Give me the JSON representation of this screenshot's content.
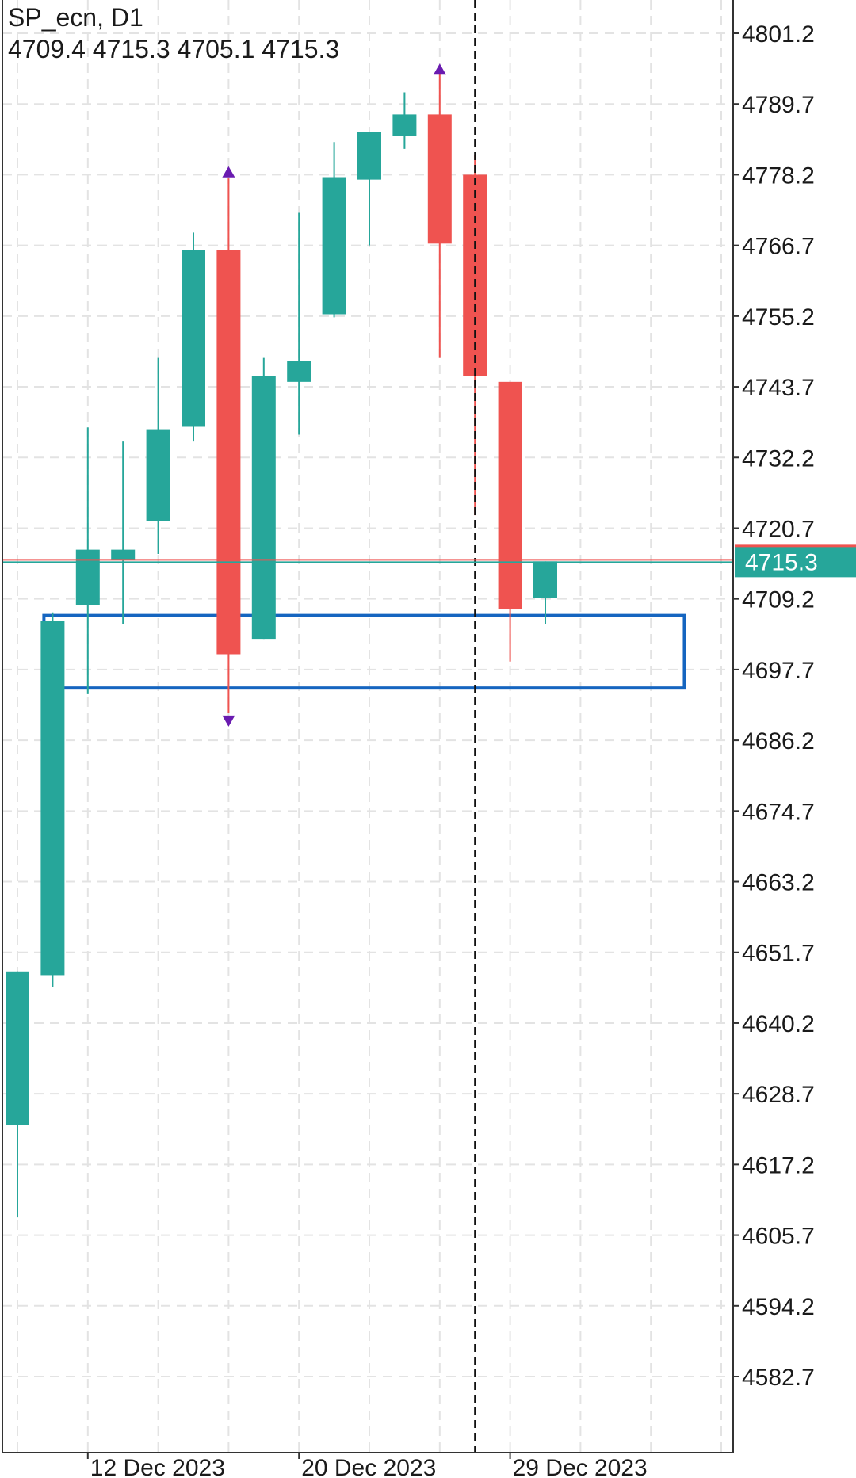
{
  "header": {
    "symbol_timeframe": "SP_ecn, D1",
    "ohlc": "4709.4 4715.3 4705.1 4715.3"
  },
  "colors": {
    "bull": "#26a69a",
    "bear": "#ef5350",
    "grid": "#e3e3e3",
    "axis": "#333333",
    "zone": "#1565c0",
    "signal_arrow": "#6a1bb0",
    "price_tag_bg": "#26a69a",
    "price_tag_text": "#ffffff"
  },
  "chart_data": {
    "type": "candlestick",
    "symbol": "SP_ecn",
    "timeframe": "D1",
    "ylim": [
      4572,
      4810
    ],
    "y_ticks": [
      4801.2,
      4789.7,
      4778.2,
      4766.7,
      4755.2,
      4743.7,
      4732.2,
      4720.7,
      4709.2,
      4697.7,
      4686.2,
      4674.7,
      4663.2,
      4651.7,
      4640.2,
      4628.7,
      4617.2,
      4605.7,
      4594.2,
      4582.7
    ],
    "y_tick_labels": [
      "4801.2",
      "4789.7",
      "4778.2",
      "4766.7",
      "4755.2",
      "4743.7",
      "4732.2",
      "4720.7",
      "4709.2",
      "4697.7",
      "4686.2",
      "4674.7",
      "4663.2",
      "4651.7",
      "4640.2",
      "4628.7",
      "4617.2",
      "4605.7",
      "4594.2",
      "4582.7"
    ],
    "x_tick_labels": [
      {
        "slot": 2,
        "label": "12 Dec 2023"
      },
      {
        "slot": 8,
        "label": "20 Dec 2023"
      },
      {
        "slot": 14,
        "label": "29 Dec 2023"
      }
    ],
    "grid": true,
    "current_price": 4715.3,
    "current_price_label": "4715.3",
    "vertical_marker_slot": 13,
    "candles": [
      {
        "slot": 0,
        "open": 4623.6,
        "high": 4648.6,
        "low": 4608.6,
        "close": 4648.6
      },
      {
        "slot": 1,
        "open": 4648.0,
        "high": 4707.0,
        "low": 4646.0,
        "close": 4705.6
      },
      {
        "slot": 2,
        "open": 4708.2,
        "high": 4737.1,
        "low": 4693.7,
        "close": 4717.2
      },
      {
        "slot": 3,
        "open": 4715.5,
        "high": 4734.8,
        "low": 4705.1,
        "close": 4717.2
      },
      {
        "slot": 4,
        "open": 4721.9,
        "high": 4748.4,
        "low": 4716.5,
        "close": 4736.8
      },
      {
        "slot": 5,
        "open": 4737.2,
        "high": 4768.8,
        "low": 4734.8,
        "close": 4766.0
      },
      {
        "slot": 6,
        "open": 4766.0,
        "high": 4777.6,
        "low": 4690.6,
        "close": 4700.2
      },
      {
        "slot": 7,
        "open": 4702.7,
        "high": 4748.4,
        "low": 4702.7,
        "close": 4745.4
      },
      {
        "slot": 8,
        "open": 4744.5,
        "high": 4772.0,
        "low": 4735.9,
        "close": 4747.9
      },
      {
        "slot": 9,
        "open": 4755.5,
        "high": 4783.5,
        "low": 4755.0,
        "close": 4777.8
      },
      {
        "slot": 10,
        "open": 4777.4,
        "high": 4785.2,
        "low": 4766.7,
        "close": 4785.2
      },
      {
        "slot": 11,
        "open": 4784.5,
        "high": 4791.6,
        "low": 4782.4,
        "close": 4788.0
      },
      {
        "slot": 12,
        "open": 4788.0,
        "high": 4794.5,
        "low": 4748.4,
        "close": 4767.0
      },
      {
        "slot": 13,
        "open": 4778.2,
        "high": 4781.5,
        "low": 4722.8,
        "close": 4745.4
      },
      {
        "slot": 14,
        "open": 4744.5,
        "high": 4744.5,
        "low": 4699.0,
        "close": 4707.6
      },
      {
        "slot": 15,
        "open": 4709.4,
        "high": 4715.3,
        "low": 4705.1,
        "close": 4715.3
      }
    ],
    "signal_arrows": [
      {
        "slot": 6,
        "direction": "up",
        "price": 4778.8
      },
      {
        "slot": 6,
        "direction": "down",
        "price": 4689.2
      },
      {
        "slot": 12,
        "direction": "up",
        "price": 4795.5
      }
    ],
    "zone": {
      "slot_start": 1.0,
      "slot_end": 19.2,
      "top": 4706.5,
      "bottom": 4694.7
    }
  }
}
